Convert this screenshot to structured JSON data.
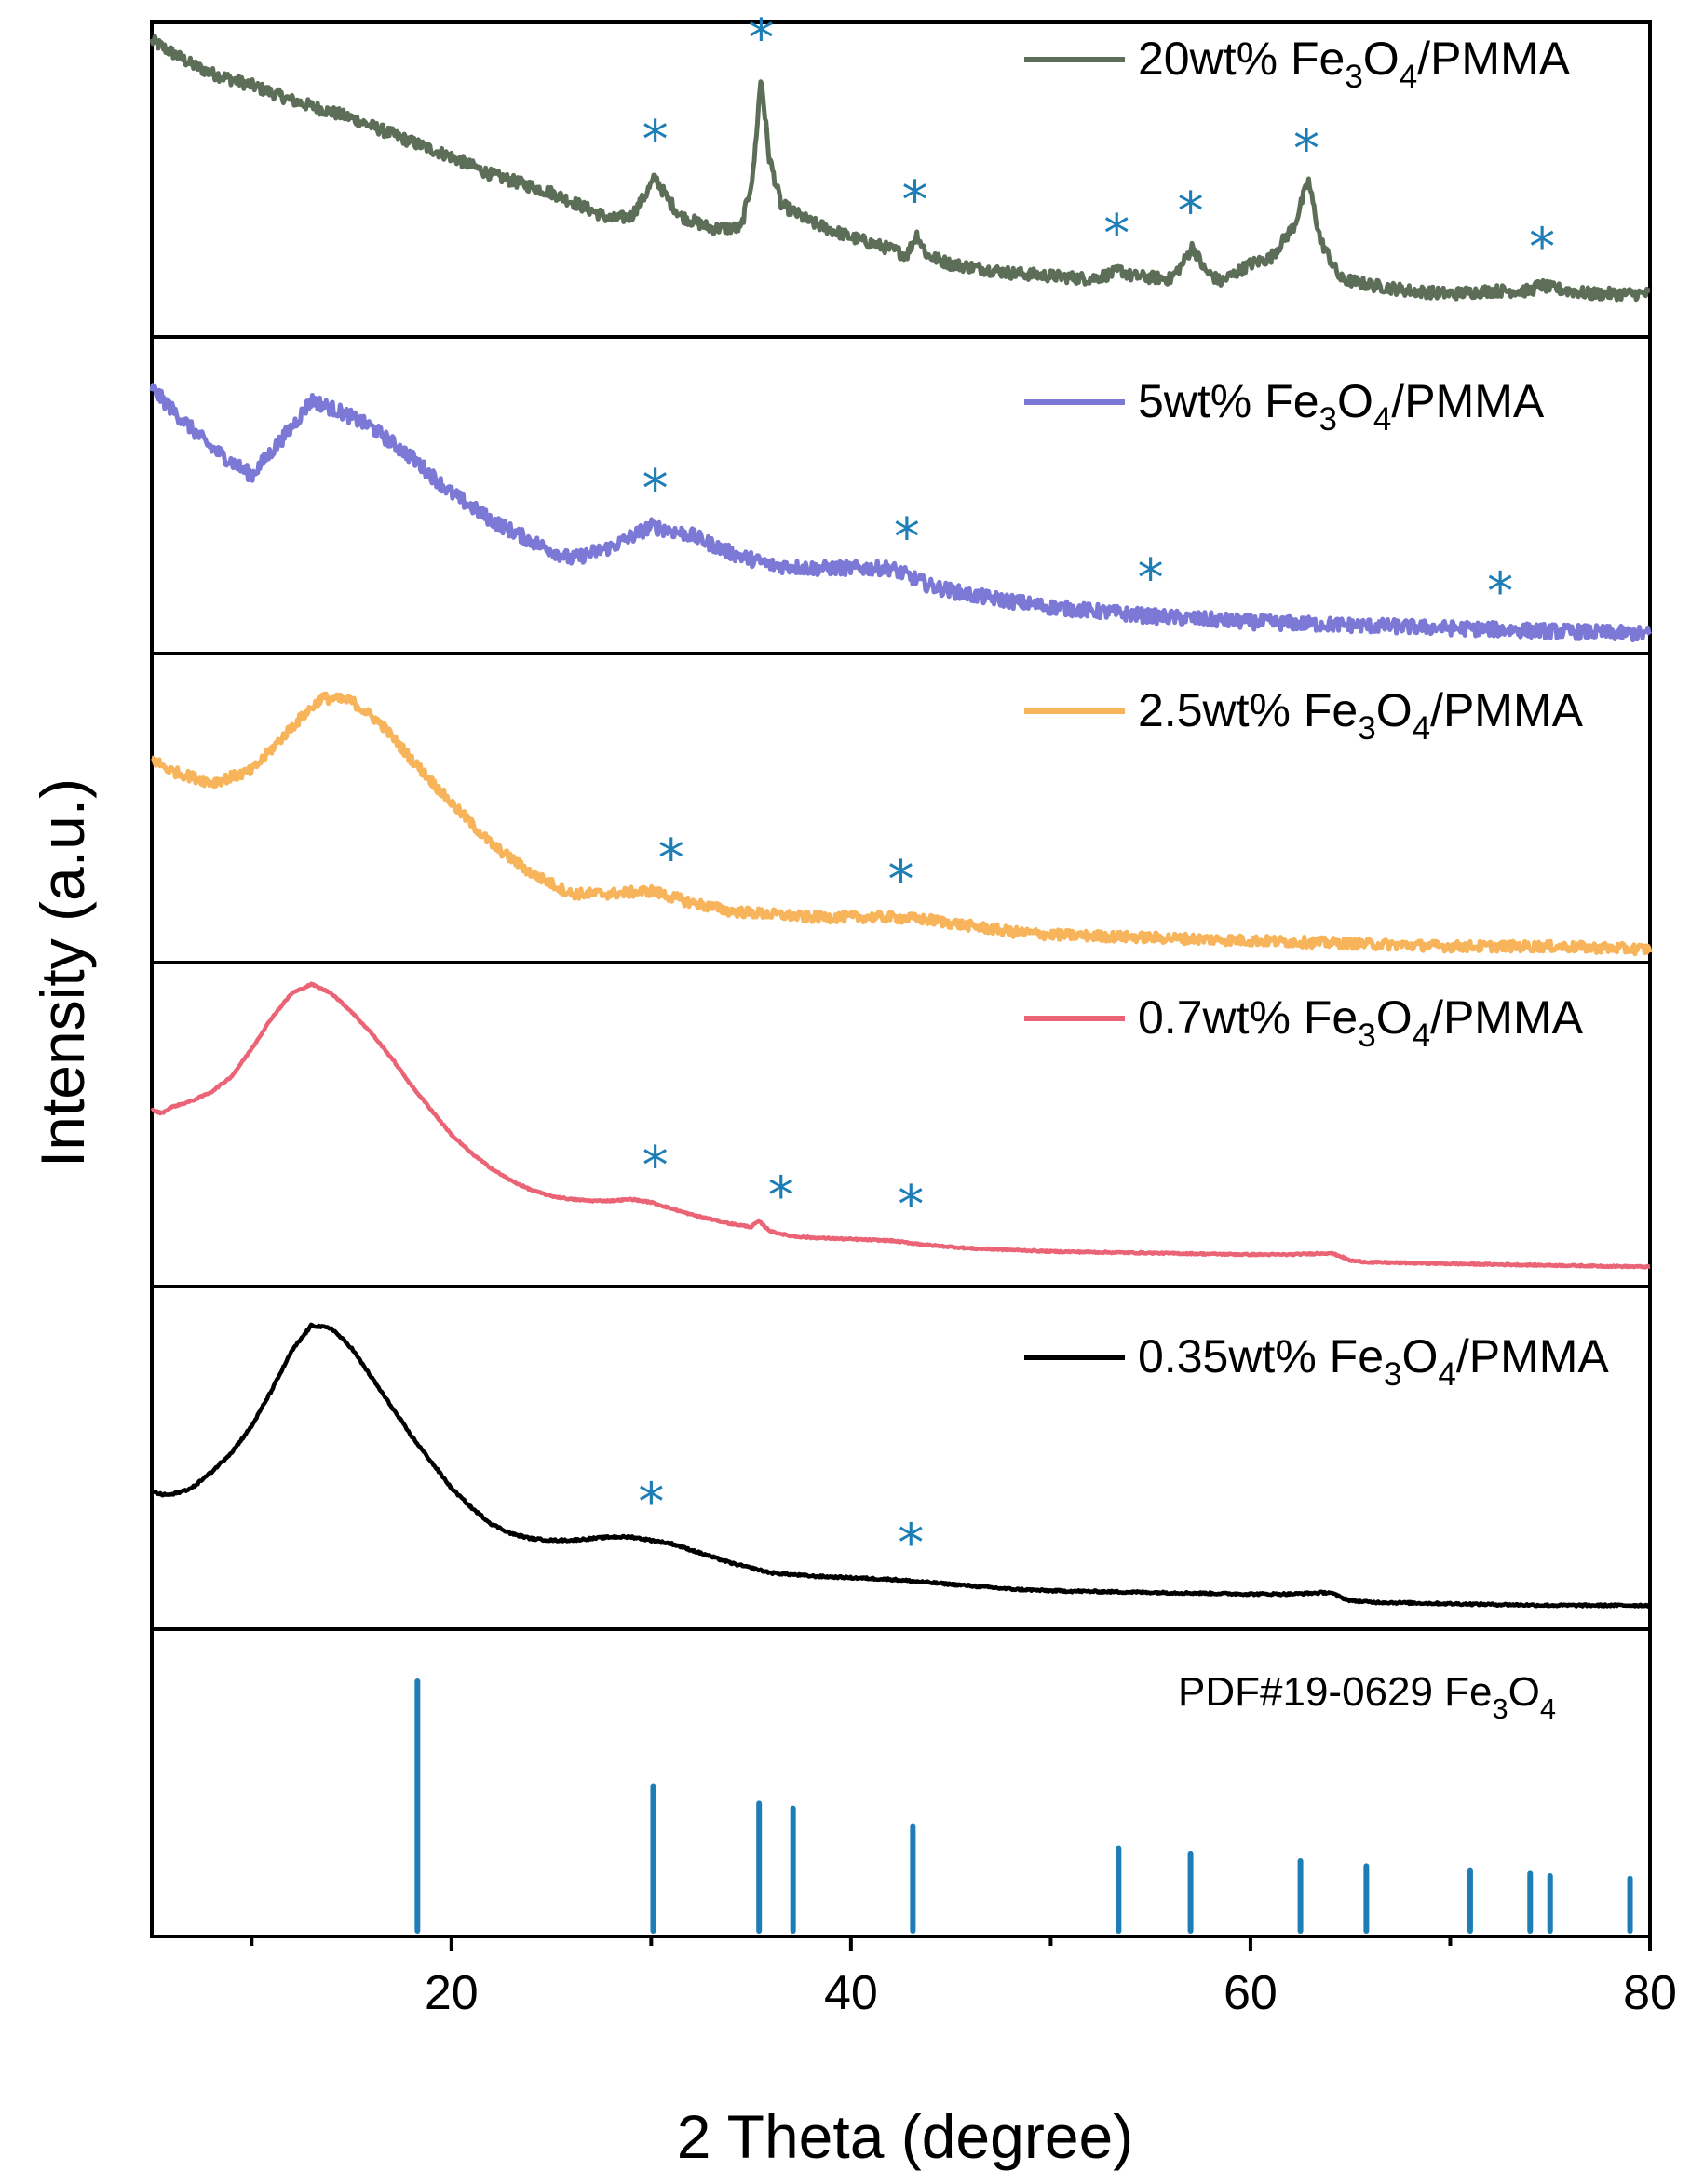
{
  "chart_data": {
    "type": "line",
    "title": "",
    "xlabel": "2 Theta (degree)",
    "ylabel": "Intensity (a.u.)",
    "xlim": [
      5,
      80
    ],
    "xticks": [
      20,
      40,
      60,
      80
    ],
    "grid": false,
    "colors": {
      "s20": "#5c6e57",
      "s5": "#7b78d6",
      "s25": "#f8b45a",
      "s07": "#ea6476",
      "s035": "#000000",
      "marker": "#1d7db6",
      "reference": "#1d7db6"
    },
    "series": [
      {
        "key": "s20",
        "name_prefix": "20wt% Fe",
        "sub1": "3",
        "mid": "O",
        "sub2": "4",
        "suffix": "/PMMA",
        "noise": 0.025,
        "x": [
          5,
          6,
          7,
          8,
          10,
          12,
          15,
          18,
          20,
          22,
          25,
          27,
          28,
          29,
          29.6,
          30.2,
          30.8,
          31.5,
          33,
          34.5,
          35.1,
          35.5,
          35.9,
          36.5,
          38,
          40,
          42,
          42.8,
          43.3,
          43.8,
          45,
          48,
          50,
          52,
          53.2,
          53.5,
          54,
          56,
          56.6,
          57.1,
          57.7,
          58.5,
          60,
          61,
          62.2,
          62.9,
          63.5,
          64.5,
          66,
          68,
          70,
          72,
          74,
          74.5,
          75,
          77,
          80
        ],
        "y": [
          97,
          93,
          89,
          86,
          82,
          77,
          71,
          63,
          58,
          52,
          46,
          40,
          37,
          38,
          44,
          51,
          44,
          38,
          34,
          34,
          52,
          85,
          58,
          42,
          36,
          31,
          27,
          25,
          32,
          25,
          22,
          19,
          18,
          17,
          19,
          20,
          18,
          17,
          22,
          28,
          20,
          16,
          22,
          24,
          35,
          50,
          30,
          17,
          15,
          13,
          12,
          13,
          13,
          15,
          14,
          12,
          12
        ],
        "stars": [
          30.2,
          35.5,
          43.2,
          53.3,
          57.0,
          62.8,
          74.6
        ]
      },
      {
        "key": "s5",
        "name_prefix": "5wt% Fe",
        "sub1": "3",
        "mid": "O",
        "sub2": "4",
        "suffix": "/PMMA",
        "noise": 0.03,
        "x": [
          5,
          6,
          8,
          10,
          12,
          13,
          14.5,
          16,
          18,
          20,
          22,
          24,
          26,
          28,
          30,
          32,
          34,
          36,
          38,
          40,
          42,
          44,
          46,
          48,
          50,
          55,
          60,
          65,
          70,
          75,
          80
        ],
        "y": [
          86,
          79,
          66,
          57,
          73,
          82,
          78,
          73,
          63,
          51,
          42,
          35,
          29,
          33,
          40,
          37,
          31,
          27,
          26,
          26,
          26,
          20,
          17,
          15,
          13,
          10,
          8,
          7,
          6,
          5,
          4
        ],
        "stars": [
          30.2,
          42.8,
          55.0,
          72.5
        ]
      },
      {
        "key": "s25",
        "name_prefix": "2.5wt% Fe",
        "sub1": "3",
        "mid": "O",
        "sub2": "4",
        "suffix": "/PMMA",
        "noise": 0.022,
        "x": [
          5,
          6,
          8,
          10,
          12,
          13.5,
          15,
          16.5,
          18,
          20,
          22,
          24,
          26,
          28,
          30,
          32,
          34,
          36,
          38,
          40,
          42,
          44,
          46,
          48,
          50,
          55,
          60,
          65,
          70,
          75,
          80
        ],
        "y": [
          67,
          63,
          59,
          63,
          78,
          88,
          87,
          79,
          67,
          52,
          38,
          28,
          21,
          21,
          22,
          18,
          15,
          14,
          13,
          13,
          13,
          12,
          10,
          8,
          7,
          6,
          5,
          4,
          3,
          3,
          2
        ],
        "stars": [
          31.0,
          42.5
        ]
      },
      {
        "key": "s07",
        "name_prefix": "0.7wt% Fe",
        "sub1": "3",
        "mid": "O",
        "sub2": "4",
        "suffix": "/PMMA",
        "noise": 0.003,
        "x": [
          5,
          5.5,
          6,
          7,
          8,
          9,
          10,
          11,
          12,
          13,
          14,
          15,
          16,
          17,
          18,
          19,
          20,
          21,
          22,
          23,
          24,
          25,
          26,
          27,
          28,
          29,
          30,
          31,
          32,
          33,
          34,
          35,
          35.4,
          35.6,
          36,
          37,
          38,
          40,
          42,
          44,
          46,
          48,
          50,
          55,
          60,
          62,
          64,
          64.5,
          65,
          66,
          70,
          75,
          80
        ],
        "y": [
          55,
          54,
          56,
          58,
          61,
          66,
          75,
          85,
          93,
          96,
          93,
          87,
          80,
          72,
          63,
          55,
          47,
          41,
          36,
          32,
          29,
          27,
          26,
          25.5,
          25.5,
          26,
          25,
          23,
          21,
          19.5,
          18,
          17,
          19,
          17.5,
          15.5,
          14,
          13.5,
          13,
          12.5,
          11,
          10,
          9.5,
          9,
          8.5,
          8,
          8,
          8.5,
          7.5,
          6,
          5.5,
          5,
          4.5,
          4
        ],
        "stars": [
          30.2,
          36.5,
          43.0
        ]
      },
      {
        "key": "s035",
        "name_prefix": "0.35wt% Fe",
        "sub1": "3",
        "mid": "O",
        "sub2": "4",
        "suffix": "/PMMA",
        "noise": 0.004,
        "x": [
          5,
          5.5,
          6,
          7,
          8,
          9,
          10,
          11,
          12,
          13,
          14,
          15,
          16,
          17,
          18,
          19,
          20,
          21,
          22,
          23,
          24,
          25,
          26,
          27,
          28,
          29,
          30,
          31,
          32,
          33,
          34,
          35,
          36,
          37,
          38,
          40,
          42,
          44,
          46,
          48,
          50,
          55,
          60,
          62,
          64,
          64.5,
          65,
          66,
          70,
          75,
          80
        ],
        "y": [
          40,
          39,
          39,
          41,
          46,
          52,
          60,
          71,
          83,
          91,
          90,
          84,
          75,
          66,
          57,
          49,
          41,
          35,
          30,
          27,
          25.5,
          25,
          25,
          25.5,
          26,
          26,
          25,
          24,
          22,
          20,
          18,
          16.5,
          15,
          14.5,
          14,
          13.5,
          13,
          12,
          11,
          10,
          9.5,
          9,
          8.5,
          8.5,
          9,
          7.5,
          6.5,
          6,
          5.5,
          5,
          5
        ],
        "stars": [
          30.0,
          43.0
        ]
      }
    ],
    "reference": {
      "label_prefix": "PDF#19-0629 Fe",
      "sub1": "3",
      "mid": "O",
      "sub2": "4",
      "positions": [
        18.3,
        30.1,
        35.4,
        37.1,
        43.1,
        53.4,
        57.0,
        62.5,
        65.8,
        71.0,
        74.0,
        75.0,
        79.0
      ],
      "intensities": [
        100,
        58,
        51,
        49,
        42,
        33,
        31,
        28,
        26,
        24,
        23,
        22,
        21
      ]
    }
  }
}
